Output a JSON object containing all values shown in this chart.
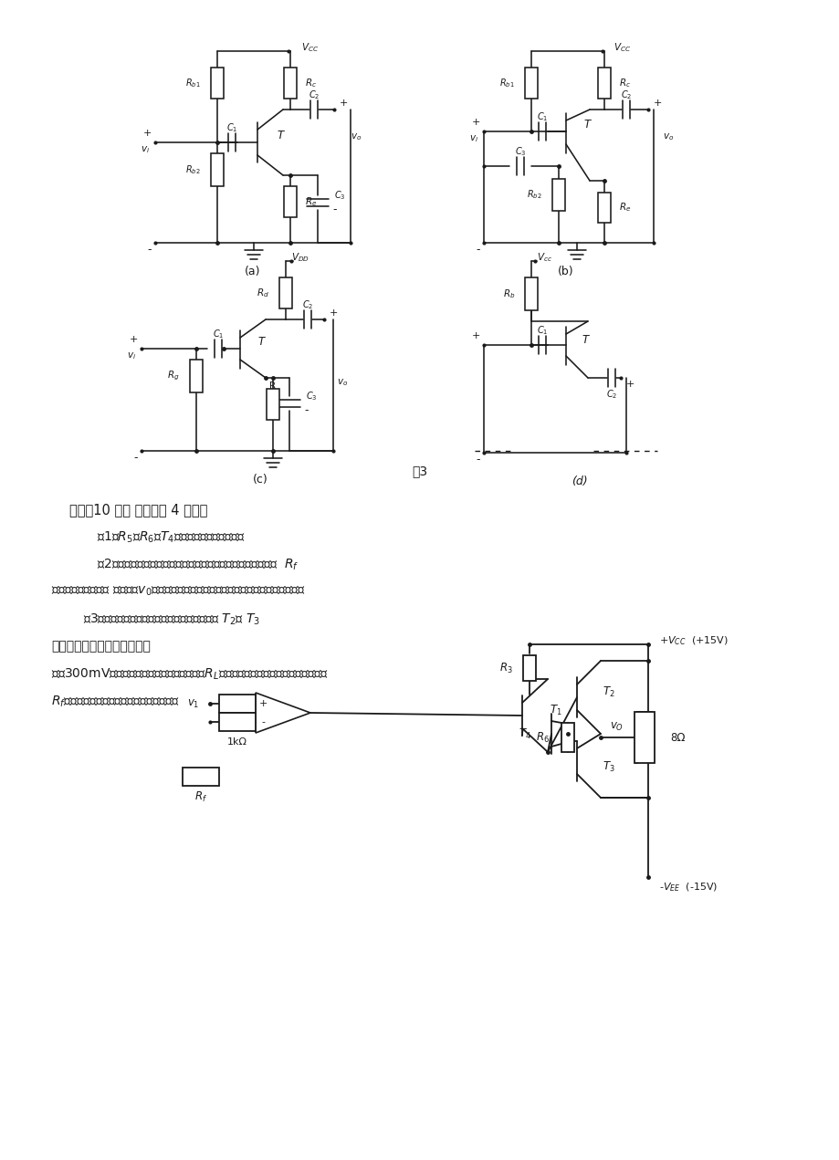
{
  "bg_color": "#ffffff",
  "line_color": "#1a1a1a",
  "text_color": "#1a1a1a",
  "fig3_label": "图3",
  "section4_title": "四、（10 分） 电路如图 4 所示。",
  "q1": "（1）$R_5$、$R_6$和$T_4$构成的电路有什么作用？",
  "q2a": "（2）希望在不增加其它任何元器件情况下，通过图中反馈电阻  $R_f$",
  "q2b": "引入负反馈，以稳定 输出电压$v_0$。试画出反馈通路的连线，并说明该反馈是什么组态；",
  "q3a": "        （3）假设引入的负反馈为深度负反馈，可忽略 $T_2$、 $T_3$",
  "q3b": "的饱和管压降。当电路输入幅",
  "q3c": "值为300mV的正弦波信号时，若要求负载电阻$R_L$上得到最大不失真输出电压，反馈电阻",
  "q3d": "$R_f$应取多大？此时负载获得的功率有多大？"
}
